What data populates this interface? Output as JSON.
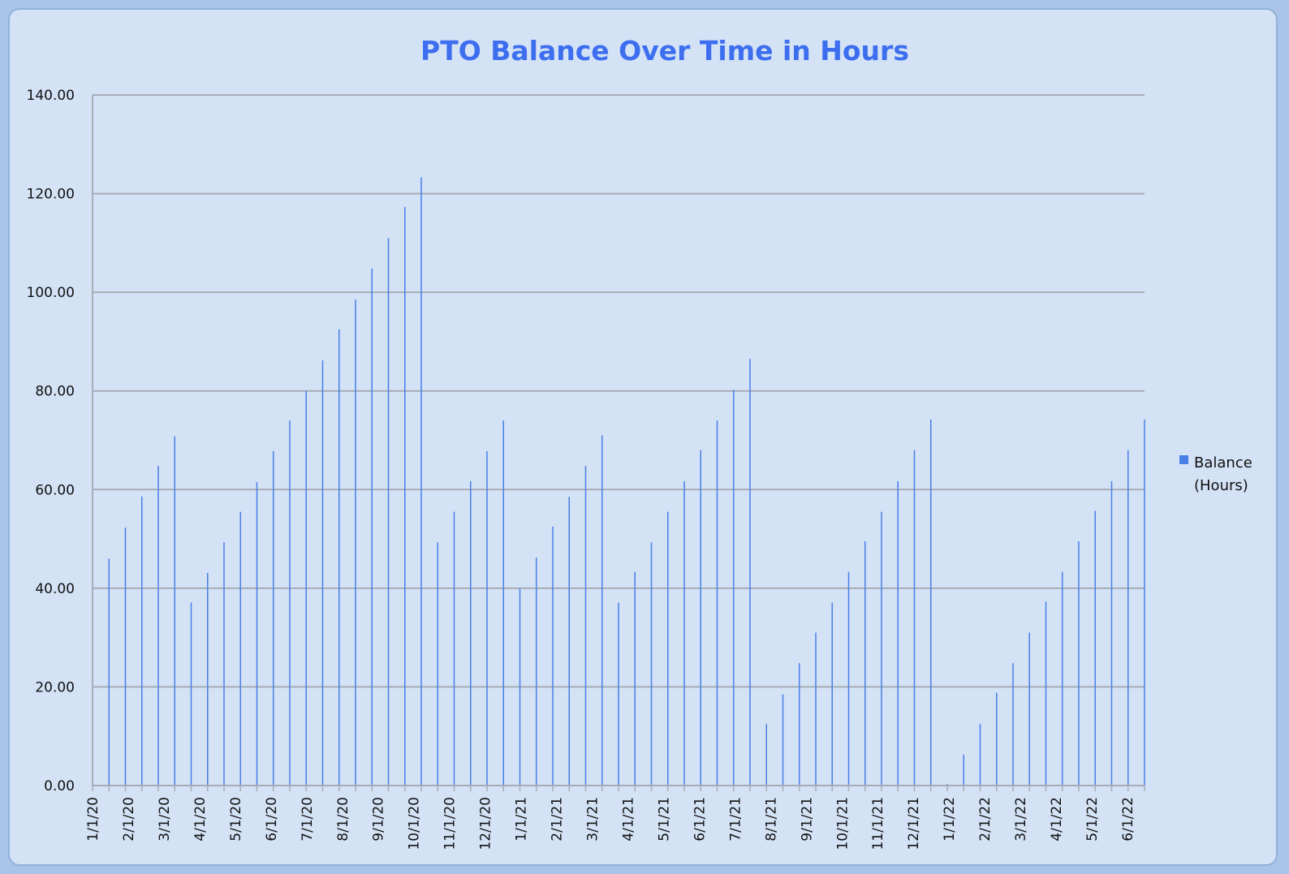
{
  "chart_data": {
    "type": "bar",
    "title": "PTO Balance Over Time in Hours",
    "xlabel": "",
    "ylabel": "",
    "ylim": [
      0,
      140
    ],
    "yticks": [
      "0.00",
      "20.00",
      "40.00",
      "60.00",
      "80.00",
      "100.00",
      "120.00",
      "140.00"
    ],
    "grid": true,
    "legend_position": "right",
    "bar_color": "#4a7fe8",
    "grid_color": "#a6adb6",
    "x_tick_labels": [
      "1/1/20",
      "2/1/20",
      "3/1/20",
      "4/1/20",
      "5/1/20",
      "6/1/20",
      "7/1/20",
      "8/1/20",
      "9/1/20",
      "10/1/20",
      "11/1/20",
      "12/1/20",
      "1/1/21",
      "2/1/21",
      "3/1/21",
      "4/1/21",
      "5/1/21",
      "6/1/21",
      "7/1/21",
      "8/1/21",
      "9/1/21",
      "10/1/21",
      "11/1/21",
      "12/1/21",
      "1/1/22",
      "2/1/22",
      "3/1/22",
      "4/1/22",
      "5/1/22",
      "6/1/22"
    ],
    "series": [
      {
        "name": "Balance (Hours)",
        "legend_lines": [
          "Balance",
          "(Hours)"
        ],
        "values": [
          40.0,
          46.0,
          52.3,
          58.6,
          64.8,
          70.8,
          37.1,
          43.1,
          49.3,
          55.5,
          61.5,
          67.8,
          74.0,
          80.0,
          86.2,
          92.5,
          98.5,
          104.8,
          111.0,
          117.3,
          123.3,
          49.3,
          55.5,
          61.7,
          67.8,
          74.0,
          40.0,
          46.2,
          52.5,
          58.5,
          64.8,
          71.0,
          37.1,
          43.3,
          49.3,
          55.5,
          61.7,
          68.0,
          74.0,
          80.2,
          86.5,
          12.5,
          18.5,
          24.8,
          31.0,
          37.1,
          43.3,
          49.5,
          55.5,
          61.7,
          68.0,
          74.2,
          0.3,
          6.3,
          12.5,
          18.8,
          24.8,
          31.0,
          37.3,
          43.3,
          49.5,
          55.7,
          61.7,
          68.0,
          74.2
        ]
      }
    ]
  }
}
